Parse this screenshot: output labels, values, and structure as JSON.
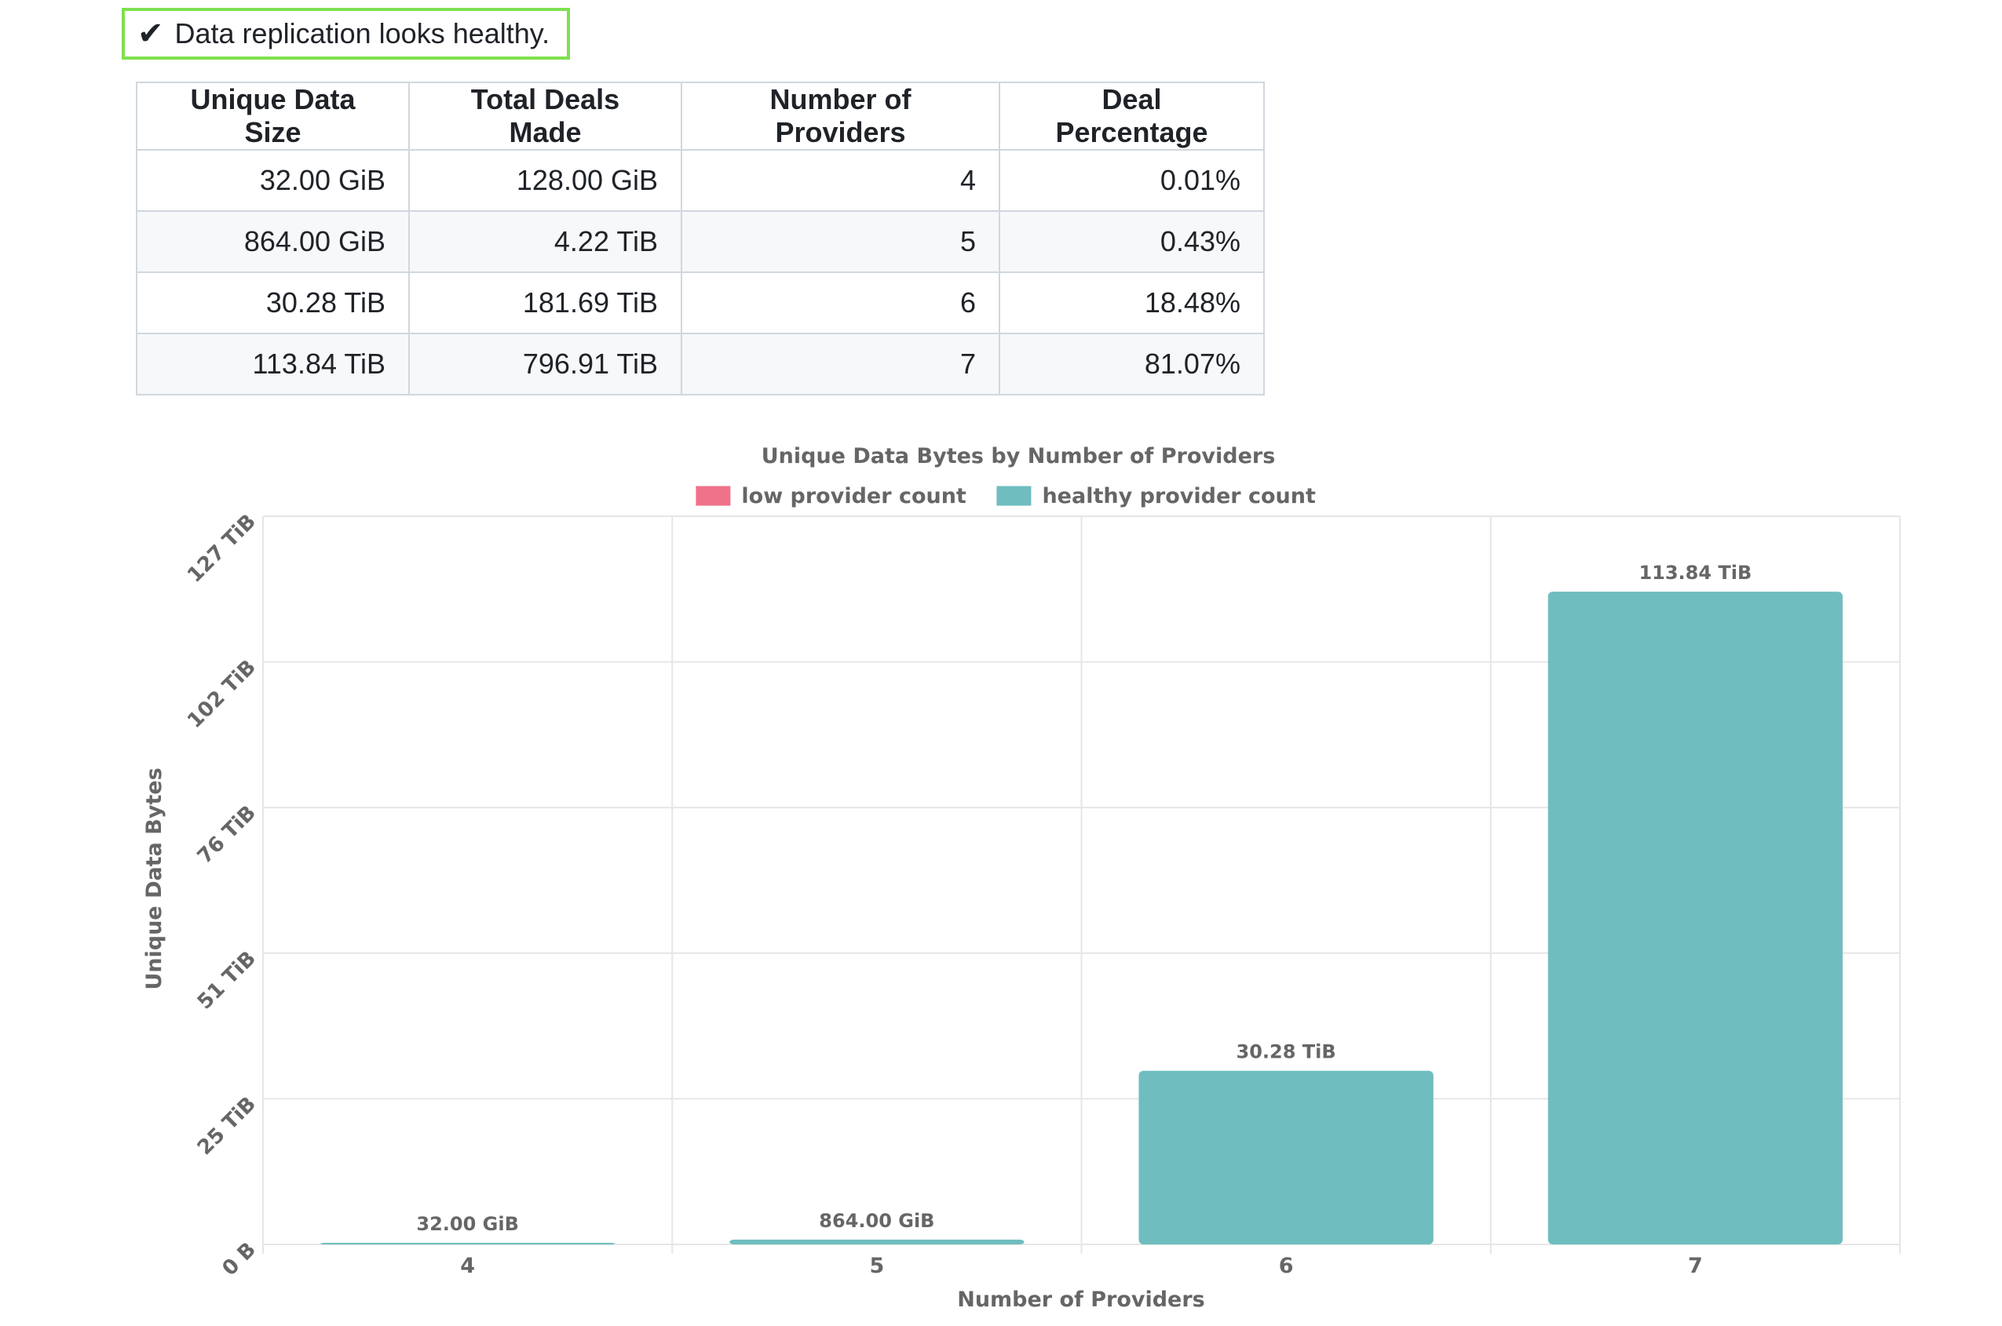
{
  "status": {
    "icon": "check-icon",
    "check_glyph": "✔",
    "message": "Data replication looks healthy.",
    "border_color": "#7ee04f"
  },
  "table": {
    "headers": [
      "Unique Data Size",
      "Total Deals Made",
      "Number of Providers",
      "Deal Percentage"
    ],
    "rows": [
      [
        "32.00 GiB",
        "128.00 GiB",
        "4",
        "0.01%"
      ],
      [
        "864.00 GiB",
        "4.22 TiB",
        "5",
        "0.43%"
      ],
      [
        "30.28 TiB",
        "181.69 TiB",
        "6",
        "18.48%"
      ],
      [
        "113.84 TiB",
        "796.91 TiB",
        "7",
        "81.07%"
      ]
    ]
  },
  "chart_data": {
    "type": "bar",
    "title": "Unique Data Bytes by Number of Providers",
    "xlabel": "Number of Providers",
    "ylabel": "Unique Data Bytes",
    "categories": [
      "4",
      "5",
      "6",
      "7"
    ],
    "values_tib": [
      0.03125,
      0.84375,
      30.28,
      113.84
    ],
    "value_labels": [
      "32.00 GiB",
      "864.00 GiB",
      "30.28 TiB",
      "113.84 TiB"
    ],
    "bar_series": [
      "healthy provider count",
      "healthy provider count",
      "healthy provider count",
      "healthy provider count"
    ],
    "y_ticks_tib": [
      0,
      25.4,
      50.8,
      76.2,
      101.6,
      127
    ],
    "y_tick_labels": [
      "0 B",
      "25 TiB",
      "51 TiB",
      "76 TiB",
      "102 TiB",
      "127 TiB"
    ],
    "ylim": [
      0,
      127
    ],
    "grid": true,
    "legend": {
      "placement": "top-center",
      "entries": [
        {
          "label": "low provider count",
          "color": "#f0728a"
        },
        {
          "label": "healthy provider count",
          "color": "#6fbdbf"
        }
      ]
    }
  }
}
